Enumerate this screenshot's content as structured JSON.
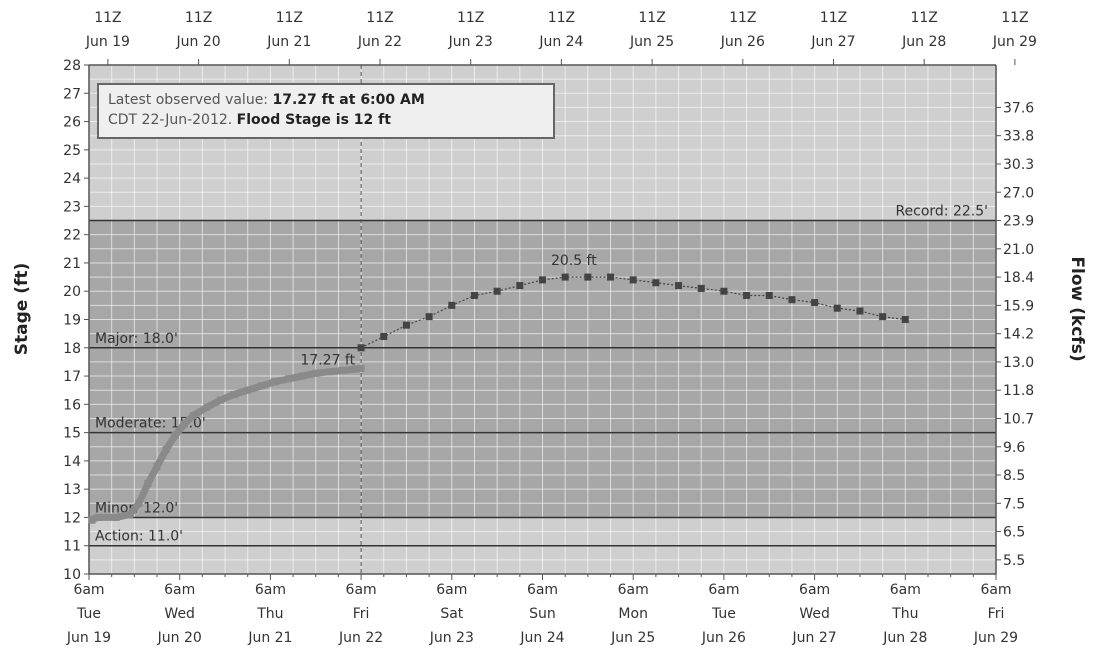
{
  "chart_data": {
    "type": "line",
    "ylabel": "Stage (ft)",
    "y2label": "Flow (kcfs)",
    "ylim": [
      10,
      28
    ],
    "yticks": [
      10,
      11,
      12,
      13,
      14,
      15,
      16,
      17,
      18,
      19,
      20,
      21,
      22,
      23,
      24,
      25,
      26,
      27,
      28
    ],
    "y2ticks": [
      {
        "stage": 10.5,
        "label": "5.5"
      },
      {
        "stage": 11.5,
        "label": "6.5"
      },
      {
        "stage": 12.5,
        "label": "7.5"
      },
      {
        "stage": 13.5,
        "label": "8.5"
      },
      {
        "stage": 14.5,
        "label": "9.6"
      },
      {
        "stage": 15.5,
        "label": "10.7"
      },
      {
        "stage": 16.5,
        "label": "11.8"
      },
      {
        "stage": 17.5,
        "label": "13.0"
      },
      {
        "stage": 18.5,
        "label": "14.2"
      },
      {
        "stage": 19.5,
        "label": "15.9"
      },
      {
        "stage": 20.5,
        "label": "18.4"
      },
      {
        "stage": 21.5,
        "label": "21.0"
      },
      {
        "stage": 22.5,
        "label": "23.9"
      },
      {
        "stage": 23.5,
        "label": "27.0"
      },
      {
        "stage": 24.5,
        "label": "30.3"
      },
      {
        "stage": 25.5,
        "label": "33.8"
      },
      {
        "stage": 26.5,
        "label": "37.6"
      }
    ],
    "bottom_ticks": [
      {
        "l1": "6am",
        "l2": "Tue",
        "l3": "Jun 19"
      },
      {
        "l1": "6am",
        "l2": "Wed",
        "l3": "Jun 20"
      },
      {
        "l1": "6am",
        "l2": "Thu",
        "l3": "Jun 21"
      },
      {
        "l1": "6am",
        "l2": "Fri",
        "l3": "Jun 22"
      },
      {
        "l1": "6am",
        "l2": "Sat",
        "l3": "Jun 23"
      },
      {
        "l1": "6am",
        "l2": "Sun",
        "l3": "Jun 24"
      },
      {
        "l1": "6am",
        "l2": "Mon",
        "l3": "Jun 25"
      },
      {
        "l1": "6am",
        "l2": "Tue",
        "l3": "Jun 26"
      },
      {
        "l1": "6am",
        "l2": "Wed",
        "l3": "Jun 27"
      },
      {
        "l1": "6am",
        "l2": "Thu",
        "l3": "Jun 28"
      },
      {
        "l1": "6am",
        "l2": "Fri",
        "l3": "Jun 29"
      }
    ],
    "top_ticks": [
      {
        "l1": "11Z",
        "l2": "Jun 19"
      },
      {
        "l1": "11Z",
        "l2": "Jun 20"
      },
      {
        "l1": "11Z",
        "l2": "Jun 21"
      },
      {
        "l1": "11Z",
        "l2": "Jun 22"
      },
      {
        "l1": "11Z",
        "l2": "Jun 23"
      },
      {
        "l1": "11Z",
        "l2": "Jun 24"
      },
      {
        "l1": "11Z",
        "l2": "Jun 25"
      },
      {
        "l1": "11Z",
        "l2": "Jun 26"
      },
      {
        "l1": "11Z",
        "l2": "Jun 27"
      },
      {
        "l1": "11Z",
        "l2": "Jun 28"
      },
      {
        "l1": "11Z",
        "l2": "Jun 29"
      }
    ],
    "thresholds": [
      {
        "label": "Record: 22.5'",
        "value": 22.5
      },
      {
        "label": "Major: 18.0'",
        "value": 18.0
      },
      {
        "label": "Moderate: 15.0'",
        "value": 15.0
      },
      {
        "label": "Minor: 12.0'",
        "value": 12.0
      },
      {
        "label": "Action: 11.0'",
        "value": 11.0
      }
    ],
    "observed": {
      "x": [
        -0.1,
        0.1,
        0.3,
        0.45,
        0.55,
        0.65,
        0.75,
        0.85,
        0.95,
        1.05,
        1.15,
        1.3,
        1.45,
        1.6,
        1.75,
        1.9,
        2.05,
        2.2,
        2.35,
        2.5,
        2.65,
        2.8,
        2.95,
        3.0
      ],
      "y": [
        11.9,
        12.0,
        12.0,
        12.1,
        12.5,
        13.2,
        13.8,
        14.4,
        14.9,
        15.3,
        15.6,
        15.9,
        16.15,
        16.35,
        16.5,
        16.65,
        16.8,
        16.9,
        17.0,
        17.1,
        17.15,
        17.2,
        17.25,
        17.27
      ]
    },
    "forecast": {
      "x": [
        3.0,
        3.25,
        3.5,
        3.75,
        4.0,
        4.25,
        4.5,
        4.75,
        5.0,
        5.25,
        5.5,
        5.75,
        6.0,
        6.25,
        6.5,
        6.75,
        7.0,
        7.25,
        7.5,
        7.75,
        8.0,
        8.25,
        8.5,
        8.75,
        9.0
      ],
      "y": [
        18.0,
        18.4,
        18.8,
        19.1,
        19.5,
        19.85,
        20.0,
        20.2,
        20.4,
        20.5,
        20.5,
        20.5,
        20.4,
        20.3,
        20.2,
        20.1,
        20.0,
        19.85,
        19.85,
        19.7,
        19.6,
        19.4,
        19.3,
        19.1,
        19.0
      ]
    },
    "observed_label": "17.27 ft",
    "peak_label": "20.5 ft",
    "peak_x": 5.5,
    "peak_y": 20.5,
    "now_x": 3.0,
    "note": {
      "line1_a": "Latest observed value: ",
      "line1_b": "17.27 ft at 6:00 AM",
      "line2_a": "CDT 22-Jun-2012. ",
      "line2_b": "Flood Stage is 12 ft"
    },
    "colors": {
      "upper_band": "#cfcfcf",
      "lower_band": "#a7a7a7",
      "observed": "#8a8a8a",
      "forecast": "#444444",
      "threshold": "#333333",
      "axis": "#555555",
      "grid": "#ffffff"
    }
  }
}
